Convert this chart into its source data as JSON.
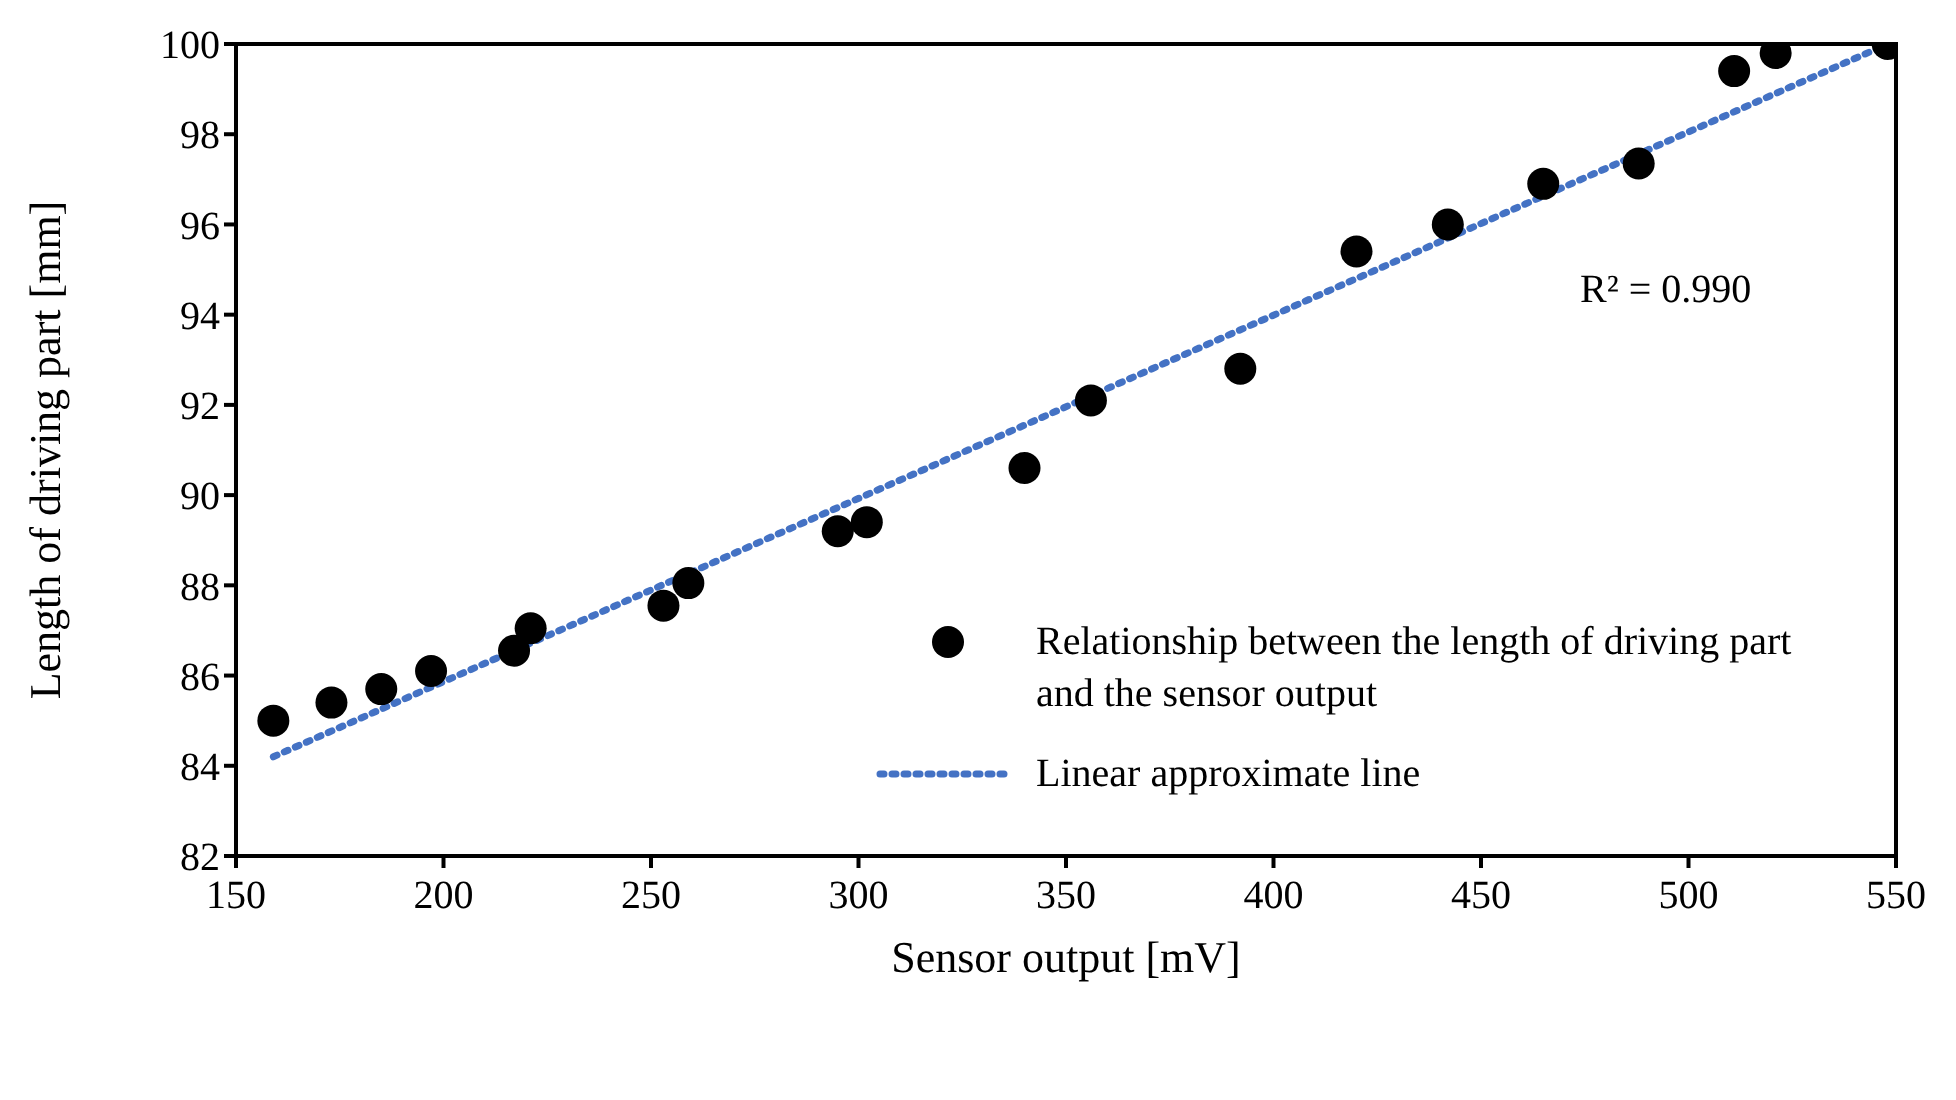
{
  "chart_data": {
    "type": "scatter",
    "xlabel": "Sensor output [mV]",
    "ylabel": "Length of driving part [mm]",
    "xlim": [
      150,
      550
    ],
    "xticks": [
      150,
      200,
      250,
      300,
      350,
      400,
      450,
      500,
      550
    ],
    "ylim": [
      82,
      100
    ],
    "yticks": [
      82,
      84,
      86,
      88,
      90,
      92,
      94,
      96,
      98,
      100
    ],
    "grid": false,
    "legend": "bottom right",
    "marker": "circle",
    "annotations": [
      "R² = 0.990"
    ],
    "series": [
      {
        "name": "Relationship between the length of driving part and the sensor output",
        "type": "scatter",
        "color": "#000000",
        "x": [
          159,
          173,
          185,
          197,
          217,
          221,
          253,
          259,
          295,
          302,
          340,
          356,
          392,
          420,
          442,
          465,
          488,
          511,
          521,
          548
        ],
        "values": [
          85.0,
          85.4,
          85.7,
          86.1,
          86.55,
          87.05,
          87.55,
          88.05,
          89.2,
          89.4,
          90.6,
          92.1,
          92.8,
          95.4,
          96.0,
          96.9,
          97.35,
          99.4,
          99.8,
          100.0
        ]
      },
      {
        "name": "Linear approximate line",
        "type": "line",
        "color": "#4472c4",
        "line_style": "dotted",
        "marker": "none",
        "x": [
          159,
          548
        ],
        "values": [
          84.2,
          100.0
        ]
      }
    ]
  }
}
